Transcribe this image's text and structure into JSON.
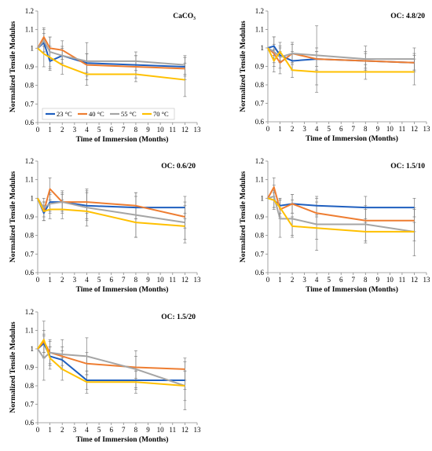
{
  "legend": {
    "entries": [
      {
        "label": "23 °C",
        "color": "#1f5fbf"
      },
      {
        "label": "40 °C",
        "color": "#ee7d31"
      },
      {
        "label": "55 °C",
        "color": "#a5a5a5"
      },
      {
        "label": "70 °C",
        "color": "#ffc000"
      }
    ]
  },
  "chart_data": [
    {
      "type": "line",
      "title": "CaCO₃",
      "xlabel": "Time of Immersion (Months)",
      "ylabel": "Normalized Tensile Modulus",
      "xlim": [
        0,
        13
      ],
      "ylim": [
        0.6,
        1.2
      ],
      "xticks": [
        "0",
        "1",
        "2",
        "3",
        "4",
        "5",
        "6",
        "7",
        "8",
        "9",
        "10",
        "11",
        "12",
        "13"
      ],
      "yticks": [
        "0.6",
        "0.7",
        "0.8",
        "0.9",
        "1",
        "1.1",
        "1.2"
      ],
      "legend_position": "bottom-left",
      "x": [
        0,
        0.5,
        1,
        2,
        4,
        8,
        12
      ],
      "series": [
        {
          "name": "23 °C",
          "color": "#1f5fbf",
          "values": [
            1.0,
            1.03,
            0.93,
            0.96,
            0.92,
            0.91,
            0.9
          ],
          "err": [
            0.0,
            0.05,
            0.05,
            0.04,
            0.05,
            0.05,
            0.05
          ]
        },
        {
          "name": "40 °C",
          "color": "#ee7d31",
          "values": [
            1.0,
            1.06,
            1.0,
            0.99,
            0.91,
            0.9,
            0.89
          ],
          "err": [
            0.0,
            0.05,
            0.06,
            0.05,
            0.06,
            0.06,
            0.06
          ]
        },
        {
          "name": "55 °C",
          "color": "#a5a5a5",
          "values": [
            1.0,
            1.04,
            0.98,
            0.96,
            0.93,
            0.93,
            0.91
          ],
          "err": [
            0.0,
            0.06,
            0.08,
            0.05,
            0.1,
            0.05,
            0.05
          ]
        },
        {
          "name": "70 °C",
          "color": "#ffc000",
          "values": [
            1.0,
            0.97,
            0.95,
            0.91,
            0.86,
            0.86,
            0.83
          ],
          "err": [
            0.0,
            0.07,
            0.06,
            0.05,
            0.06,
            0.04,
            0.09
          ]
        }
      ]
    },
    {
      "type": "line",
      "title": "OC: 4.8/20",
      "xlabel": "Time of Immersion (Months)",
      "ylabel": "Normalized Tensile Modulus",
      "xlim": [
        0,
        13
      ],
      "ylim": [
        0.6,
        1.2
      ],
      "xticks": [
        "0",
        "1",
        "2",
        "3",
        "4",
        "5",
        "6",
        "7",
        "8",
        "9",
        "10",
        "11",
        "12",
        "13"
      ],
      "yticks": [
        "0.6",
        "0.7",
        "0.8",
        "0.9",
        "1",
        "1.1",
        "1.2"
      ],
      "x": [
        0,
        0.5,
        1,
        2,
        4,
        8,
        12
      ],
      "series": [
        {
          "name": "23 °C",
          "color": "#1f5fbf",
          "values": [
            1.0,
            1.01,
            0.96,
            0.93,
            0.94,
            0.93,
            0.92
          ],
          "err": [
            0.0,
            0.05,
            0.04,
            0.05,
            0.04,
            0.04,
            0.04
          ]
        },
        {
          "name": "40 °C",
          "color": "#ee7d31",
          "values": [
            1.0,
            0.97,
            0.92,
            0.97,
            0.94,
            0.93,
            0.92
          ],
          "err": [
            0.0,
            0.05,
            0.06,
            0.05,
            0.06,
            0.05,
            0.05
          ]
        },
        {
          "name": "55 °C",
          "color": "#a5a5a5",
          "values": [
            1.0,
            0.98,
            0.95,
            0.97,
            0.96,
            0.94,
            0.94
          ],
          "err": [
            0.0,
            0.08,
            0.06,
            0.06,
            0.16,
            0.07,
            0.06
          ]
        },
        {
          "name": "70 °C",
          "color": "#ffc000",
          "values": [
            1.0,
            0.93,
            0.98,
            0.88,
            0.87,
            0.87,
            0.87
          ],
          "err": [
            0.0,
            0.06,
            0.05,
            0.04,
            0.11,
            0.04,
            0.07
          ]
        }
      ]
    },
    {
      "type": "line",
      "title": "OC: 0.6/20",
      "xlabel": "Time of Immersion (Months)",
      "ylabel": "Normalized Tensile Modulus",
      "xlim": [
        0,
        13
      ],
      "ylim": [
        0.6,
        1.2
      ],
      "xticks": [
        "0",
        "1",
        "2",
        "3",
        "4",
        "5",
        "6",
        "7",
        "8",
        "9",
        "10",
        "11",
        "12",
        "13"
      ],
      "yticks": [
        "0.6",
        "0.7",
        "0.8",
        "0.9",
        "1",
        "1.1",
        "1.2"
      ],
      "x": [
        0,
        0.5,
        1,
        2,
        4,
        8,
        12
      ],
      "series": [
        {
          "name": "23 °C",
          "color": "#1f5fbf",
          "values": [
            1.0,
            0.92,
            0.98,
            0.98,
            0.96,
            0.95,
            0.95
          ],
          "err": [
            0.0,
            0.04,
            0.05,
            0.04,
            0.07,
            0.06,
            0.06
          ]
        },
        {
          "name": "40 °C",
          "color": "#ee7d31",
          "values": [
            1.0,
            0.93,
            1.05,
            0.98,
            0.98,
            0.96,
            0.9
          ],
          "err": [
            0.0,
            0.05,
            0.06,
            0.05,
            0.06,
            0.07,
            0.06
          ]
        },
        {
          "name": "55 °C",
          "color": "#a5a5a5",
          "values": [
            1.0,
            0.95,
            0.97,
            0.98,
            0.95,
            0.91,
            0.87
          ],
          "err": [
            0.0,
            0.05,
            0.05,
            0.06,
            0.1,
            0.12,
            0.11
          ]
        },
        {
          "name": "70 °C",
          "color": "#ffc000",
          "values": [
            1.0,
            0.93,
            0.94,
            0.94,
            0.93,
            0.87,
            0.85
          ],
          "err": [
            0.0,
            0.05,
            0.05,
            0.05,
            0.05,
            0.08,
            0.07
          ]
        }
      ]
    },
    {
      "type": "line",
      "title": "OC: 1.5/10",
      "xlabel": "Time of Immersion (Months)",
      "ylabel": "Normalized Tensile Modulus",
      "xlim": [
        0,
        13
      ],
      "ylim": [
        0.6,
        1.2
      ],
      "xticks": [
        "0",
        "1",
        "2",
        "3",
        "4",
        "5",
        "6",
        "7",
        "8",
        "9",
        "10",
        "11",
        "12",
        "13"
      ],
      "yticks": [
        "0.6",
        "0.7",
        "0.8",
        "0.9",
        "1",
        "1.1",
        "1.2"
      ],
      "x": [
        0,
        0.5,
        1,
        2,
        4,
        8,
        12
      ],
      "series": [
        {
          "name": "23 °C",
          "color": "#1f5fbf",
          "values": [
            1.0,
            0.99,
            0.96,
            0.97,
            0.96,
            0.95,
            0.95
          ],
          "err": [
            0.0,
            0.04,
            0.04,
            0.05,
            0.05,
            0.06,
            0.05
          ]
        },
        {
          "name": "40 °C",
          "color": "#ee7d31",
          "values": [
            1.0,
            1.06,
            0.94,
            0.97,
            0.92,
            0.88,
            0.88
          ],
          "err": [
            0.0,
            0.05,
            0.05,
            0.05,
            0.06,
            0.06,
            0.06
          ]
        },
        {
          "name": "55 °C",
          "color": "#a5a5a5",
          "values": [
            1.0,
            1.01,
            0.89,
            0.89,
            0.86,
            0.86,
            0.82
          ],
          "err": [
            0.0,
            0.06,
            0.1,
            0.1,
            0.14,
            0.1,
            0.13
          ]
        },
        {
          "name": "70 °C",
          "color": "#ffc000",
          "values": [
            1.0,
            0.99,
            0.95,
            0.85,
            0.84,
            0.82,
            0.82
          ],
          "err": [
            0.0,
            0.05,
            0.05,
            0.05,
            0.06,
            0.05,
            0.05
          ]
        }
      ]
    },
    {
      "type": "line",
      "title": "OC: 1.5/20",
      "xlabel": "Time of Immersion (Months)",
      "ylabel": "Normalized Tensile Modulus",
      "xlim": [
        0,
        13
      ],
      "ylim": [
        0.6,
        1.2
      ],
      "xticks": [
        "0",
        "1",
        "2",
        "3",
        "4",
        "5",
        "6",
        "7",
        "8",
        "9",
        "10",
        "11",
        "12",
        "13"
      ],
      "yticks": [
        "0.6",
        "0.7",
        "0.8",
        "0.9",
        "1",
        "1.1",
        "1.2"
      ],
      "x": [
        0,
        0.5,
        1,
        2,
        4,
        8,
        12
      ],
      "series": [
        {
          "name": "23 °C",
          "color": "#1f5fbf",
          "values": [
            1.0,
            1.03,
            0.96,
            0.94,
            0.83,
            0.83,
            0.83
          ],
          "err": [
            0.0,
            0.05,
            0.05,
            0.05,
            0.05,
            0.05,
            0.05
          ]
        },
        {
          "name": "40 °C",
          "color": "#ee7d31",
          "values": [
            1.0,
            1.04,
            0.98,
            0.96,
            0.92,
            0.9,
            0.89
          ],
          "err": [
            0.0,
            0.06,
            0.06,
            0.05,
            0.06,
            0.06,
            0.06
          ]
        },
        {
          "name": "55 °C",
          "color": "#a5a5a5",
          "values": [
            1.0,
            0.95,
            0.98,
            0.97,
            0.96,
            0.89,
            0.8
          ],
          "err": [
            0.0,
            0.12,
            0.07,
            0.08,
            0.1,
            0.1,
            0.13
          ]
        },
        {
          "name": "70 °C",
          "color": "#ffc000",
          "values": [
            1.0,
            1.05,
            0.95,
            0.89,
            0.82,
            0.82,
            0.8
          ],
          "err": [
            0.0,
            0.1,
            0.06,
            0.06,
            0.06,
            0.06,
            0.08
          ]
        }
      ]
    }
  ]
}
